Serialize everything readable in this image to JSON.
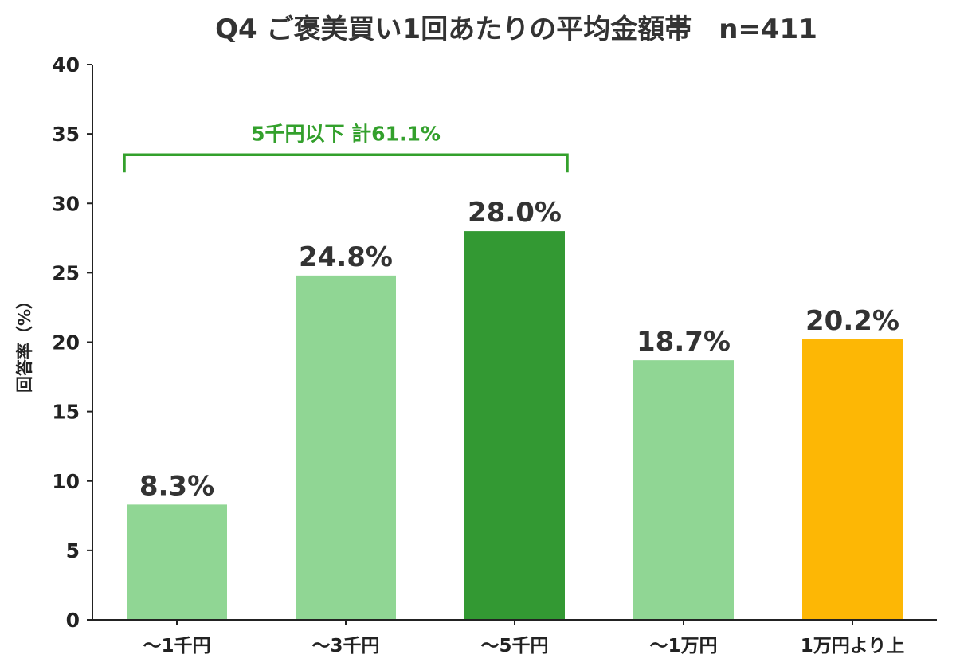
{
  "chart_data": {
    "type": "bar",
    "title": "Q4 ご褒美買い1回あたりの平均金額帯　n=411",
    "ylabel": "回答率（%）",
    "xlabel": "",
    "ylim": [
      0,
      40
    ],
    "yticks": [
      "0",
      "5",
      "10",
      "15",
      "20",
      "25",
      "30",
      "35",
      "40"
    ],
    "categories": [
      "〜1千円",
      "〜3千円",
      "〜5千円",
      "〜1万円",
      "1万円より上"
    ],
    "values": [
      8.3,
      24.8,
      28.0,
      18.7,
      20.2
    ],
    "data_labels": [
      "8.3%",
      "24.8%",
      "28.0%",
      "18.7%",
      "20.2%"
    ],
    "bar_colors": [
      "#90d694",
      "#90d694",
      "#339933",
      "#90d694",
      "#fdb705"
    ],
    "grid": false,
    "annotation": {
      "text": "5千円以下 計61.1%",
      "color": "#33a02c",
      "from_category": 0,
      "to_category": 2,
      "y": 33.5
    }
  }
}
